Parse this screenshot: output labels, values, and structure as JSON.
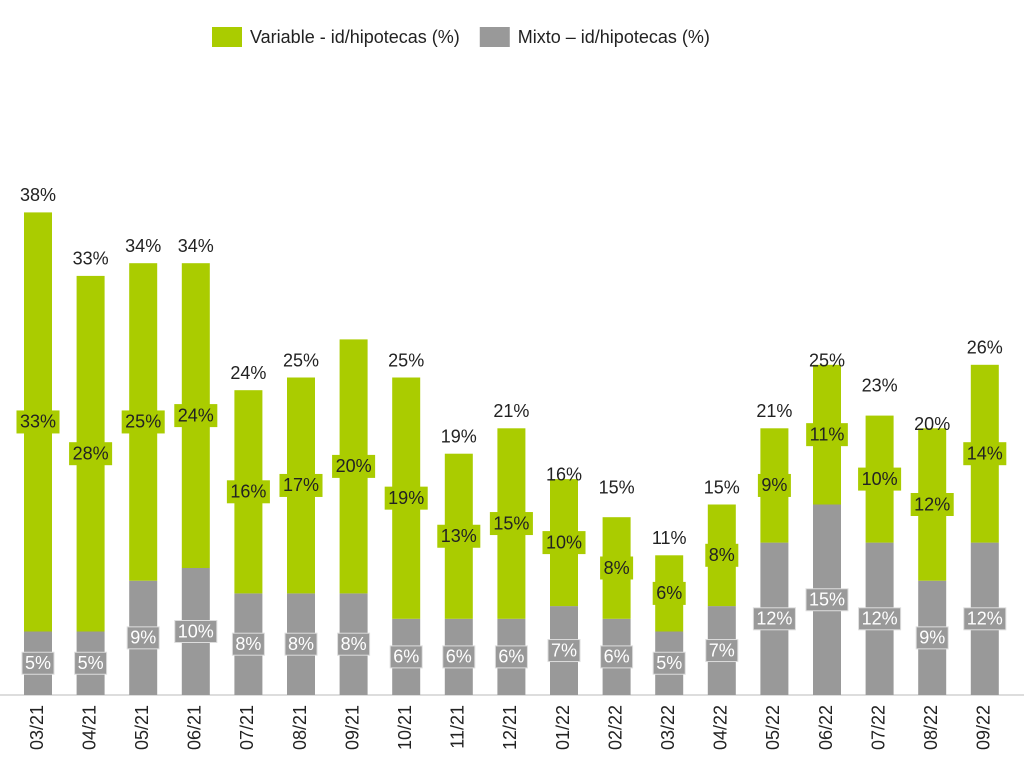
{
  "chart_data": {
    "type": "stacked_bar",
    "categories": [
      "03/21",
      "04/21",
      "05/21",
      "06/21",
      "07/21",
      "08/21",
      "09/21",
      "10/21",
      "11/21",
      "12/21",
      "01/22",
      "02/22",
      "03/22",
      "04/22",
      "05/22",
      "06/22",
      "07/22",
      "08/22",
      "09/22"
    ],
    "series": [
      {
        "name": "Mixto – id/hipotecas (%)",
        "color": "#999999",
        "values": [
          5,
          5,
          9,
          10,
          8,
          8,
          8,
          6,
          6,
          6,
          7,
          6,
          5,
          7,
          12,
          15,
          12,
          9,
          12
        ],
        "value_labels": [
          "5%",
          "5%",
          "9%",
          "10%",
          "8%",
          "8%",
          "8%",
          "6%",
          "6%",
          "6%",
          "7%",
          "6%",
          "5%",
          "7%",
          "12%",
          "15%",
          "12%",
          "9%",
          "12%"
        ]
      },
      {
        "name": "Variable - id/hipotecas (%)",
        "color": "#aacc00",
        "values": [
          33,
          28,
          25,
          24,
          16,
          17,
          20,
          19,
          13,
          15,
          10,
          8,
          6,
          8,
          9,
          11,
          10,
          12,
          14
        ],
        "value_labels": [
          "33%",
          "28%",
          "25%",
          "24%",
          "16%",
          "17%",
          "20%",
          "19%",
          "13%",
          "15%",
          "10%",
          "8%",
          "6%",
          "8%",
          "9%",
          "11%",
          "10%",
          "12%",
          "14%"
        ]
      }
    ],
    "totals": [
      38,
      33,
      34,
      34,
      24,
      25,
      null,
      25,
      19,
      21,
      16,
      15,
      11,
      15,
      21,
      25,
      23,
      20,
      26
    ],
    "total_labels": [
      "38%",
      "33%",
      "34%",
      "34%",
      "24%",
      "25%",
      null,
      "25%",
      "19%",
      "21%",
      "16%",
      "15%",
      "11%",
      "15%",
      "21%",
      "25%",
      "23%",
      "20%",
      "26%"
    ],
    "ylim": [
      0,
      40
    ]
  }
}
